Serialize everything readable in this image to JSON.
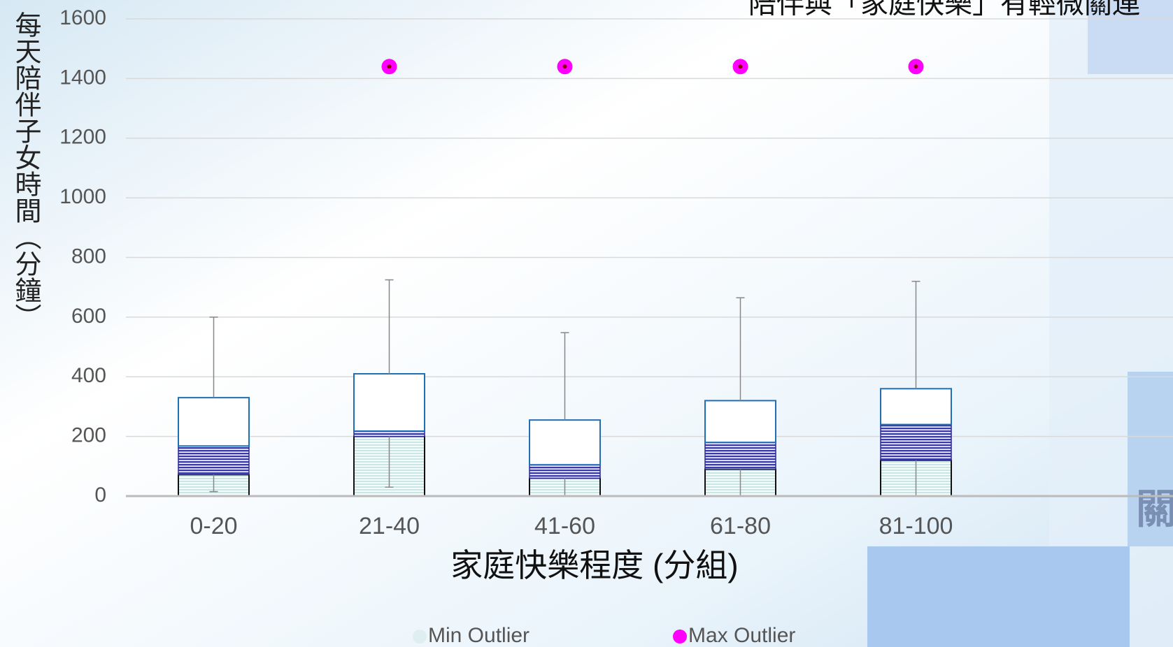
{
  "chart_data": {
    "type": "box",
    "title": "陪伴與「家庭快樂」有輕微關連",
    "side_text": "關",
    "y_label": "每天陪伴子女時間（分鐘）",
    "x_label": "家庭快樂程度 (分組)",
    "categories": [
      "0-20",
      "21-40",
      "41-60",
      "61-80",
      "81-100"
    ],
    "boxes": {
      "min": [
        15,
        30,
        0,
        0,
        0
      ],
      "q1": [
        72,
        200,
        60,
        90,
        120
      ],
      "median": [
        168,
        218,
        105,
        180,
        240
      ],
      "q3": [
        330,
        410,
        255,
        320,
        360
      ],
      "max": [
        600,
        725,
        548,
        665,
        720
      ]
    },
    "series": [
      {
        "name": "Min Outlier",
        "color": "#dfeeee",
        "values": [
          null,
          null,
          null,
          null,
          null
        ]
      },
      {
        "name": "Max Outlier",
        "color": "#ff00ff",
        "values": [
          null,
          1440,
          1440,
          1440,
          1440
        ]
      }
    ],
    "ylim": [
      0,
      1600
    ],
    "yticks": [
      0,
      200,
      400,
      600,
      800,
      1000,
      1200,
      1400,
      1600
    ],
    "grid": true
  }
}
